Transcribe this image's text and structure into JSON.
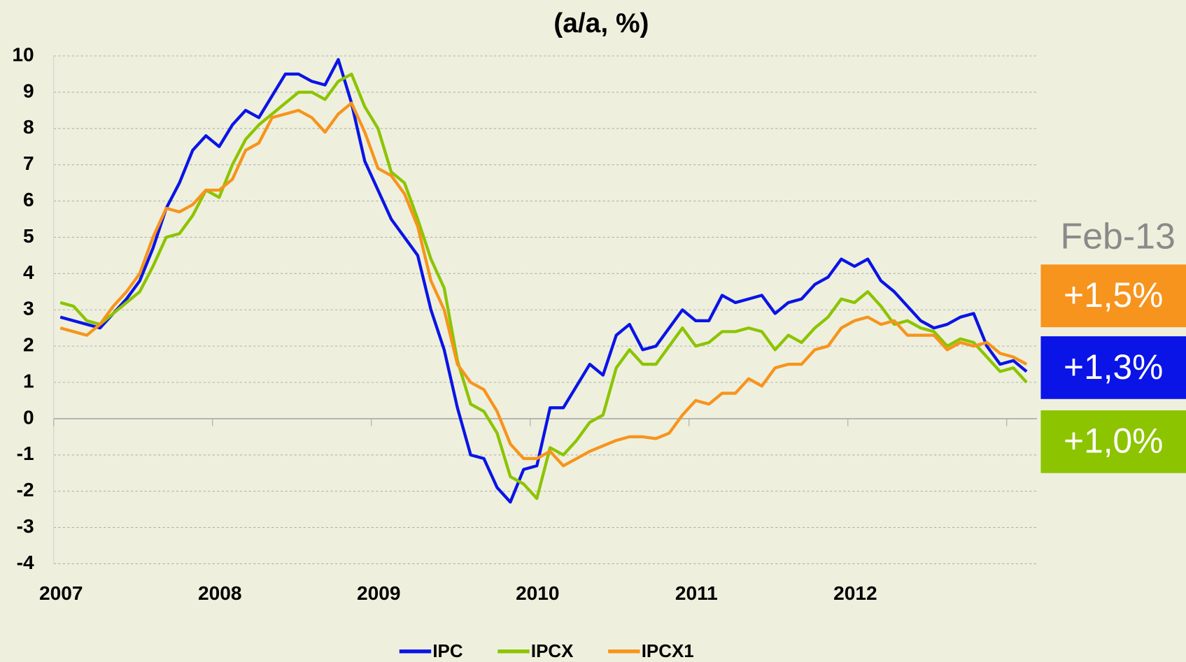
{
  "chart_data": {
    "type": "line",
    "title": "(a/a, %)",
    "categories": [
      "2007",
      null,
      null,
      null,
      null,
      null,
      null,
      null,
      null,
      null,
      null,
      null,
      "2008",
      null,
      null,
      null,
      null,
      null,
      null,
      null,
      null,
      null,
      null,
      null,
      "2009",
      null,
      null,
      null,
      null,
      null,
      null,
      null,
      null,
      null,
      null,
      null,
      "2010",
      null,
      null,
      null,
      null,
      null,
      null,
      null,
      null,
      null,
      null,
      null,
      "2011",
      null,
      null,
      null,
      null,
      null,
      null,
      null,
      null,
      null,
      null,
      null,
      "2012",
      null,
      null,
      null,
      null,
      null,
      null,
      null,
      null,
      null,
      null,
      null,
      null,
      null
    ],
    "series": [
      {
        "name": "IPC",
        "color": "#0a14e6",
        "values": [
          2.8,
          2.7,
          2.6,
          2.5,
          2.9,
          3.3,
          3.8,
          4.7,
          5.8,
          6.5,
          7.4,
          7.8,
          7.5,
          8.1,
          8.5,
          8.3,
          8.9,
          9.5,
          9.5,
          9.3,
          9.2,
          9.9,
          8.7,
          7.1,
          6.3,
          5.5,
          5.0,
          4.5,
          3.0,
          1.9,
          0.3,
          -1.0,
          -1.1,
          -1.9,
          -2.3,
          -1.4,
          -1.3,
          0.3,
          0.3,
          0.9,
          1.5,
          1.2,
          2.3,
          2.6,
          1.9,
          2.0,
          2.5,
          3.0,
          2.7,
          2.7,
          3.4,
          3.2,
          3.3,
          3.4,
          2.9,
          3.2,
          3.3,
          3.7,
          3.9,
          4.4,
          4.2,
          4.4,
          3.8,
          3.5,
          3.1,
          2.7,
          2.5,
          2.6,
          2.8,
          2.9,
          2.0,
          1.5,
          1.6,
          1.3
        ]
      },
      {
        "name": "IPCX",
        "color": "#8cc400",
        "values": [
          3.2,
          3.1,
          2.7,
          2.6,
          2.9,
          3.2,
          3.5,
          4.2,
          5.0,
          5.1,
          5.6,
          6.3,
          6.1,
          7.0,
          7.7,
          8.1,
          8.4,
          8.7,
          9.0,
          9.0,
          8.8,
          9.3,
          9.5,
          8.6,
          8.0,
          6.8,
          6.5,
          5.5,
          4.4,
          3.6,
          1.6,
          0.4,
          0.2,
          -0.4,
          -1.6,
          -1.8,
          -2.2,
          -0.8,
          -1.0,
          -0.6,
          -0.1,
          0.1,
          1.4,
          1.9,
          1.5,
          1.5,
          2.0,
          2.5,
          2.0,
          2.1,
          2.4,
          2.4,
          2.5,
          2.4,
          1.9,
          2.3,
          2.1,
          2.5,
          2.8,
          3.3,
          3.2,
          3.5,
          3.1,
          2.6,
          2.7,
          2.5,
          2.4,
          2.0,
          2.2,
          2.1,
          1.7,
          1.3,
          1.4,
          1.0
        ]
      },
      {
        "name": "IPCX1",
        "color": "#f7941d",
        "values": [
          2.5,
          2.4,
          2.3,
          2.6,
          3.1,
          3.5,
          4.0,
          5.0,
          5.8,
          5.7,
          5.9,
          6.3,
          6.3,
          6.6,
          7.4,
          7.6,
          8.3,
          8.4,
          8.5,
          8.3,
          7.9,
          8.4,
          8.7,
          7.9,
          6.9,
          6.7,
          6.2,
          5.3,
          3.8,
          3.0,
          1.5,
          1.0,
          0.8,
          0.2,
          -0.7,
          -1.1,
          -1.1,
          -0.9,
          -1.3,
          -1.1,
          -0.9,
          -0.75,
          -0.6,
          -0.5,
          -0.5,
          -0.55,
          -0.4,
          0.1,
          0.5,
          0.4,
          0.7,
          0.7,
          1.1,
          0.9,
          1.4,
          1.5,
          1.5,
          1.9,
          2.0,
          2.5,
          2.7,
          2.8,
          2.6,
          2.7,
          2.3,
          2.3,
          2.3,
          1.9,
          2.1,
          2.0,
          2.1,
          1.8,
          1.7,
          1.5
        ]
      }
    ],
    "ylim": [
      -4,
      10
    ],
    "yticks": [
      -4,
      -3,
      -2,
      -1,
      0,
      1,
      2,
      3,
      4,
      5,
      6,
      7,
      8,
      9,
      10
    ],
    "grid": true,
    "legend": "bottom",
    "annotations": {
      "date": "Feb-13",
      "boxes": [
        {
          "text": "+1,5%",
          "color": "#f7941d"
        },
        {
          "text": "+1,3%",
          "color": "#0a14e6"
        },
        {
          "text": "+1,0%",
          "color": "#8cc400"
        }
      ]
    }
  }
}
